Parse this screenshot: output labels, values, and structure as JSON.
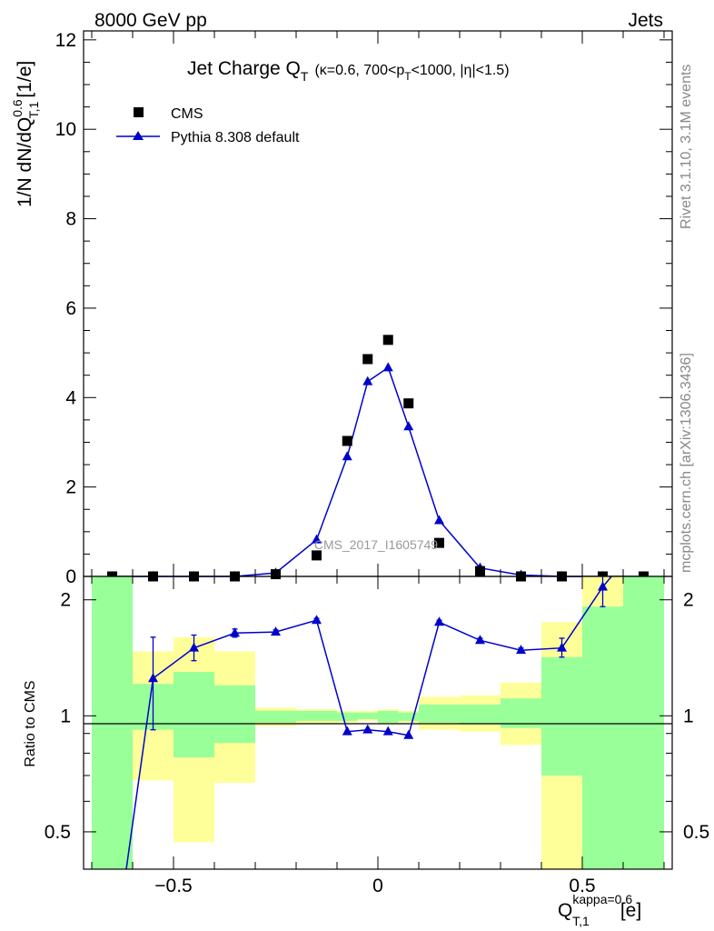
{
  "header": {
    "energy_label": "8000 GeV pp",
    "process_label": "Jets"
  },
  "side_labels": {
    "rivet": "Rivet 3.1.10,  3.1M events",
    "mcplots": "mcplots.cern.ch [arXiv:1306.3436]"
  },
  "watermark": "CMS_2017_I1605749",
  "colors": {
    "mc_line": "#0000cc",
    "data": "#000000",
    "band_1sigma": "#99ff99",
    "band_2sigma": "#ffff99",
    "frame": "#000000"
  },
  "chart_data": [
    {
      "type": "scatter",
      "panel": "main",
      "title": "Jet Charge Q_T (κ=0.6, 700<p_T<1000, |η|<1.5)",
      "ylabel": "1/N dN/dQ^0.6_T,1 [1/e]",
      "xlabel": "",
      "xlim": [
        -0.72,
        0.72
      ],
      "ylim": [
        0,
        12.2
      ],
      "yticks": [
        0,
        2,
        4,
        6,
        8,
        10,
        12
      ],
      "legend_position": "top-left",
      "series": [
        {
          "name": "CMS",
          "marker": "square",
          "x": [
            -0.65,
            -0.55,
            -0.45,
            -0.35,
            -0.25,
            -0.15,
            -0.075,
            -0.025,
            0.025,
            0.075,
            0.15,
            0.25,
            0.35,
            0.45,
            0.55,
            0.65
          ],
          "values": [
            0.0,
            0.0,
            0.0,
            0.0,
            0.05,
            0.47,
            3.03,
            4.86,
            5.29,
            3.87,
            0.75,
            0.12,
            0.0,
            0.0,
            0.0,
            0.0
          ]
        },
        {
          "name": "Pythia 8.308 default",
          "marker": "triangle",
          "x": [
            -0.65,
            -0.55,
            -0.45,
            -0.35,
            -0.25,
            -0.15,
            -0.075,
            -0.025,
            0.025,
            0.075,
            0.15,
            0.25,
            0.35,
            0.45,
            0.55,
            0.65
          ],
          "values": [
            0.0,
            0.0,
            0.0,
            0.0,
            0.08,
            0.82,
            2.68,
            4.36,
            4.67,
            3.35,
            1.25,
            0.19,
            0.03,
            0.0,
            0.0,
            0.0
          ]
        }
      ]
    },
    {
      "type": "line",
      "panel": "ratio",
      "ylabel": "Ratio to CMS",
      "xlabel": "Q_T,1^kappa=0.6 [e]",
      "xlim": [
        -0.72,
        0.72
      ],
      "ylim": [
        0.4,
        2.3
      ],
      "scale": "log",
      "yticks": [
        0.5,
        1,
        2
      ],
      "xticks": [
        -0.5,
        0,
        0.5
      ],
      "bins": [
        -0.7,
        -0.6,
        -0.5,
        -0.4,
        -0.3,
        -0.2,
        -0.1,
        -0.05,
        0.0,
        0.05,
        0.1,
        0.2,
        0.3,
        0.4,
        0.5,
        0.6,
        0.7
      ],
      "band_1sigma_low": [
        0.4,
        0.92,
        0.78,
        0.85,
        0.96,
        0.97,
        0.97,
        0.98,
        0.96,
        0.97,
        0.96,
        0.95,
        0.93,
        0.7,
        0.4,
        0.4
      ],
      "band_1sigma_high": [
        2.3,
        1.21,
        1.3,
        1.2,
        1.03,
        1.03,
        1.02,
        1.02,
        1.03,
        1.02,
        1.07,
        1.07,
        1.11,
        1.42,
        1.92,
        2.3
      ],
      "band_2sigma_low": [
        0.4,
        0.68,
        0.47,
        0.67,
        0.94,
        0.95,
        0.96,
        0.97,
        0.95,
        0.96,
        0.92,
        0.91,
        0.84,
        0.4,
        0.4,
        0.4
      ],
      "band_2sigma_high": [
        2.3,
        1.47,
        1.6,
        1.47,
        1.05,
        1.04,
        1.03,
        1.03,
        1.04,
        1.03,
        1.12,
        1.13,
        1.22,
        1.75,
        2.3,
        2.3
      ],
      "series": [
        {
          "name": "Pythia 8.308 default",
          "x": [
            -0.65,
            -0.55,
            -0.45,
            -0.35,
            -0.25,
            -0.15,
            -0.075,
            -0.025,
            0.025,
            0.075,
            0.15,
            0.25,
            0.35,
            0.45,
            0.55,
            0.65
          ],
          "values": [
            0.22,
            1.25,
            1.5,
            1.64,
            1.65,
            1.77,
            0.91,
            0.92,
            0.91,
            0.89,
            1.75,
            1.57,
            1.48,
            1.5,
            2.16,
            2.9
          ],
          "err_low": [
            0.0,
            0.33,
            0.11,
            0.04,
            0.02,
            0.02,
            0.0,
            0.0,
            0.0,
            0.0,
            0.02,
            0.02,
            0.02,
            0.08,
            0.24,
            0.0
          ],
          "err_high": [
            0.0,
            0.35,
            0.12,
            0.04,
            0.02,
            0.02,
            0.0,
            0.0,
            0.0,
            0.0,
            0.02,
            0.02,
            0.02,
            0.09,
            0.26,
            0.0
          ]
        }
      ]
    }
  ]
}
